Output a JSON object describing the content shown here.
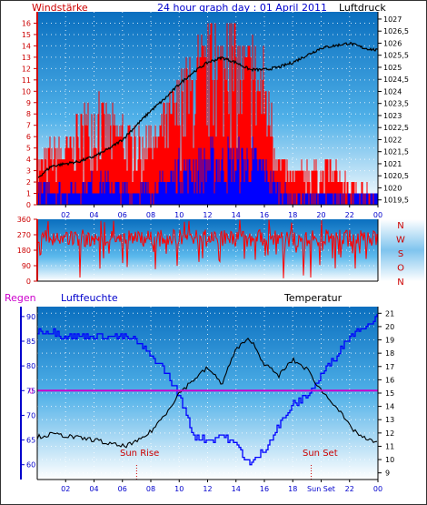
{
  "header": {
    "left_label": "Windstärke",
    "title": "24 hour graph day : 01 April 2011",
    "right_label": "Luftdruck"
  },
  "colors": {
    "wind": "#ff0000",
    "gust": "#0000ff",
    "pressure": "#000000",
    "humidity": "#0000ff",
    "temperature": "#000000",
    "rain": "#cc00cc",
    "axis_red": "#cc0000",
    "axis_blue": "#0000cc"
  },
  "compass": [
    "N",
    "W",
    "S",
    "O",
    "N"
  ],
  "mid_labels": {
    "rain": "Regen",
    "humidity": "Luftfeuchte",
    "temperature": "Temperatur",
    "sunrise": "Sun Rise",
    "sunset": "Sun Set"
  },
  "chart_data": [
    {
      "type": "line",
      "name": "wind-pressure",
      "x_ticks": [
        "02",
        "04",
        "06",
        "08",
        "10",
        "12",
        "14",
        "16",
        "18",
        "20",
        "22",
        "00"
      ],
      "y_left_ticks": [
        "0",
        "1",
        "2",
        "3",
        "4",
        "5",
        "6",
        "7",
        "8",
        "9",
        "10",
        "11",
        "12",
        "13",
        "14",
        "15",
        "16"
      ],
      "y_right_ticks": [
        "1019,5",
        "1020",
        "1020,5",
        "1021",
        "1021,5",
        "1022",
        "1022,5",
        "1023",
        "1023,5",
        "1024",
        "1024,5",
        "1025",
        "1025,5",
        "1026",
        "1026,5",
        "1027"
      ],
      "ylim_left": [
        0,
        17
      ],
      "ylim_right": [
        1019.3,
        1027.3
      ],
      "xlim": [
        0,
        24
      ],
      "pressure": {
        "x": [
          0,
          1,
          2,
          3,
          4,
          5,
          6,
          7,
          8,
          9,
          10,
          11,
          12,
          13,
          14,
          15,
          16,
          17,
          18,
          19,
          20,
          21,
          22,
          23,
          24
        ],
        "y": [
          1020.4,
          1020.9,
          1021.0,
          1021.1,
          1021.3,
          1021.6,
          1022.0,
          1022.6,
          1023.2,
          1023.7,
          1024.3,
          1024.8,
          1025.2,
          1025.4,
          1025.2,
          1024.9,
          1024.9,
          1025.0,
          1025.2,
          1025.5,
          1025.8,
          1025.9,
          1026.0,
          1025.8,
          1025.7
        ]
      },
      "wind_envelope": {
        "x": [
          0,
          1,
          2,
          3,
          4,
          5,
          6,
          7,
          8,
          9,
          10,
          11,
          12,
          13,
          14,
          15,
          16,
          17,
          18,
          19,
          20,
          21,
          22,
          23,
          24
        ],
        "y": [
          4,
          6,
          6,
          8,
          10,
          9,
          8,
          7,
          7,
          9,
          12,
          14,
          16,
          16,
          16,
          15,
          14,
          5,
          3,
          4,
          4,
          4,
          2,
          2,
          1
        ]
      },
      "gust_envelope": {
        "x": [
          0,
          1,
          2,
          3,
          4,
          5,
          6,
          7,
          8,
          9,
          10,
          11,
          12,
          13,
          14,
          15,
          16,
          17,
          18,
          19,
          20,
          21,
          22,
          23,
          24
        ],
        "y": [
          2,
          2,
          2,
          2,
          3,
          3,
          2,
          2,
          2,
          3,
          5,
          5,
          6,
          6,
          6,
          6,
          5,
          2,
          1,
          1,
          1,
          1,
          1,
          1,
          1
        ]
      }
    },
    {
      "type": "line",
      "name": "wind-direction",
      "y_ticks": [
        "0",
        "90",
        "180",
        "270",
        "360"
      ],
      "ylim": [
        0,
        360
      ],
      "xlim": [
        0,
        24
      ],
      "direction_level": [
        {
          "x": 0,
          "y": 250
        },
        {
          "x": 24,
          "y": 250
        }
      ]
    },
    {
      "type": "line",
      "name": "humidity-temperature",
      "y_left_ticks": [
        "60",
        "65",
        "70",
        "75",
        "80",
        "85",
        "90"
      ],
      "y_right_ticks": [
        "9",
        "10",
        "11",
        "12",
        "13",
        "14",
        "15",
        "16",
        "17",
        "18",
        "19",
        "20",
        "21"
      ],
      "ylim_left": [
        57,
        92
      ],
      "ylim_right": [
        8.5,
        21.5
      ],
      "rain_tick": "0",
      "x_ticks": [
        "02",
        "04",
        "06",
        "08",
        "10",
        "12",
        "14",
        "16",
        "18",
        "Sun Set",
        "22",
        "00"
      ],
      "humidity": {
        "x": [
          0,
          1,
          2,
          3,
          4,
          5,
          6,
          7,
          8,
          9,
          10,
          11,
          12,
          13,
          14,
          15,
          16,
          17,
          18,
          19,
          20,
          21,
          22,
          23,
          24
        ],
        "y": [
          87,
          87,
          86,
          86,
          86,
          86,
          86,
          85,
          82,
          79,
          74,
          66,
          65,
          66,
          64,
          60,
          63,
          68,
          72,
          74,
          78,
          82,
          86,
          88,
          90
        ]
      },
      "temperature": {
        "x": [
          0,
          1,
          2,
          3,
          4,
          5,
          6,
          7,
          8,
          9,
          10,
          11,
          12,
          13,
          14,
          15,
          16,
          17,
          18,
          19,
          20,
          21,
          22,
          23,
          24
        ],
        "y": [
          11.7,
          11.9,
          11.8,
          11.6,
          11.5,
          11.2,
          11.0,
          11.3,
          12.1,
          13.4,
          15.0,
          16.0,
          16.9,
          15.7,
          18.3,
          19.1,
          17.2,
          16.3,
          17.5,
          16.8,
          15.2,
          14.1,
          12.5,
          11.6,
          11.2
        ]
      },
      "rain_level": 0,
      "sunrise_hour": 7,
      "sunset_hour": 19.3
    }
  ]
}
